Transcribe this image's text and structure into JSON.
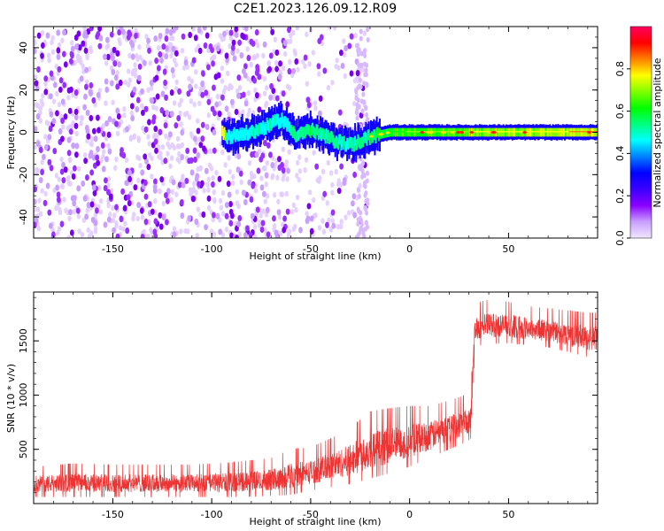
{
  "title": "C2E1.2023.126.09.12.R09",
  "chart_data": [
    {
      "type": "heatmap",
      "xlabel": "Height of straight line (km)",
      "ylabel": "Frequency (Hz)",
      "xlim": [
        -190,
        95
      ],
      "ylim": [
        -50,
        50
      ],
      "xticks": [
        -150,
        -100,
        -50,
        0,
        50
      ],
      "yticks": [
        -40,
        -20,
        0,
        20,
        40
      ],
      "colorbar": {
        "label": "Normalized spectral amplitude",
        "range": [
          0.0,
          1.0
        ],
        "ticks": [
          0.0,
          0.2,
          0.4,
          0.6,
          0.8
        ],
        "colors": [
          "#f0e6ff",
          "#c9a0ff",
          "#8a00ff",
          "#3b00ff",
          "#0000ff",
          "#0080ff",
          "#00ffff",
          "#00ff80",
          "#00ff00",
          "#80ff00",
          "#ffff00",
          "#ff8000",
          "#ff0000",
          "#ff0060"
        ]
      },
      "signal_band": {
        "x_range": [
          -95,
          95
        ],
        "center_frequency": 0,
        "features": [
          {
            "x": -93,
            "y": -2,
            "amplitude": 0.35
          },
          {
            "x": -80,
            "y": 0,
            "amplitude": 0.45
          },
          {
            "x": -65,
            "y": 6,
            "amplitude": 0.4
          },
          {
            "x": -58,
            "y": -1,
            "amplitude": 0.5
          },
          {
            "x": -50,
            "y": 1,
            "amplitude": 0.55
          },
          {
            "x": -38,
            "y": -4,
            "amplitude": 0.5
          },
          {
            "x": -30,
            "y": -6,
            "amplitude": 0.45
          },
          {
            "x": -20,
            "y": -2,
            "amplitude": 0.55
          },
          {
            "x": -10,
            "y": 0,
            "amplitude": 0.65
          },
          {
            "x": 0,
            "y": 0,
            "amplitude": 0.7
          },
          {
            "x": 20,
            "y": 0,
            "amplitude": 0.75
          },
          {
            "x": 50,
            "y": 0,
            "amplitude": 0.8
          },
          {
            "x": 80,
            "y": 0,
            "amplitude": 0.85
          },
          {
            "x": 92,
            "y": 0,
            "amplitude": 0.9
          }
        ]
      },
      "noise_region": {
        "x_range": [
          -190,
          -22
        ],
        "dense_x_range": [
          -190,
          -60
        ],
        "sparse_x_range": [
          -60,
          -22
        ]
      }
    },
    {
      "type": "line",
      "xlabel": "Height of straight line (km)",
      "ylabel": "SNR (10 * v/v)",
      "xlim": [
        -190,
        95
      ],
      "ylim": [
        0,
        1950
      ],
      "xticks": [
        -150,
        -100,
        -50,
        0,
        50
      ],
      "yticks": [
        500,
        1000,
        1500
      ],
      "color": "#ee3333",
      "x": [
        -190,
        -170,
        -150,
        -130,
        -110,
        -90,
        -70,
        -60,
        -50,
        -40,
        -30,
        -20,
        -10,
        0,
        10,
        20,
        28,
        31,
        33,
        40,
        50,
        60,
        70,
        80,
        90,
        95
      ],
      "y_low": [
        60,
        60,
        60,
        60,
        60,
        60,
        70,
        80,
        120,
        150,
        180,
        230,
        280,
        340,
        420,
        500,
        560,
        600,
        1450,
        1470,
        1480,
        1460,
        1440,
        1400,
        1350,
        1350
      ],
      "y_high": [
        340,
        370,
        360,
        360,
        360,
        380,
        420,
        500,
        520,
        600,
        700,
        850,
        880,
        900,
        900,
        950,
        1000,
        1050,
        1850,
        1880,
        1860,
        1820,
        1800,
        1780,
        1760,
        1760
      ]
    }
  ]
}
